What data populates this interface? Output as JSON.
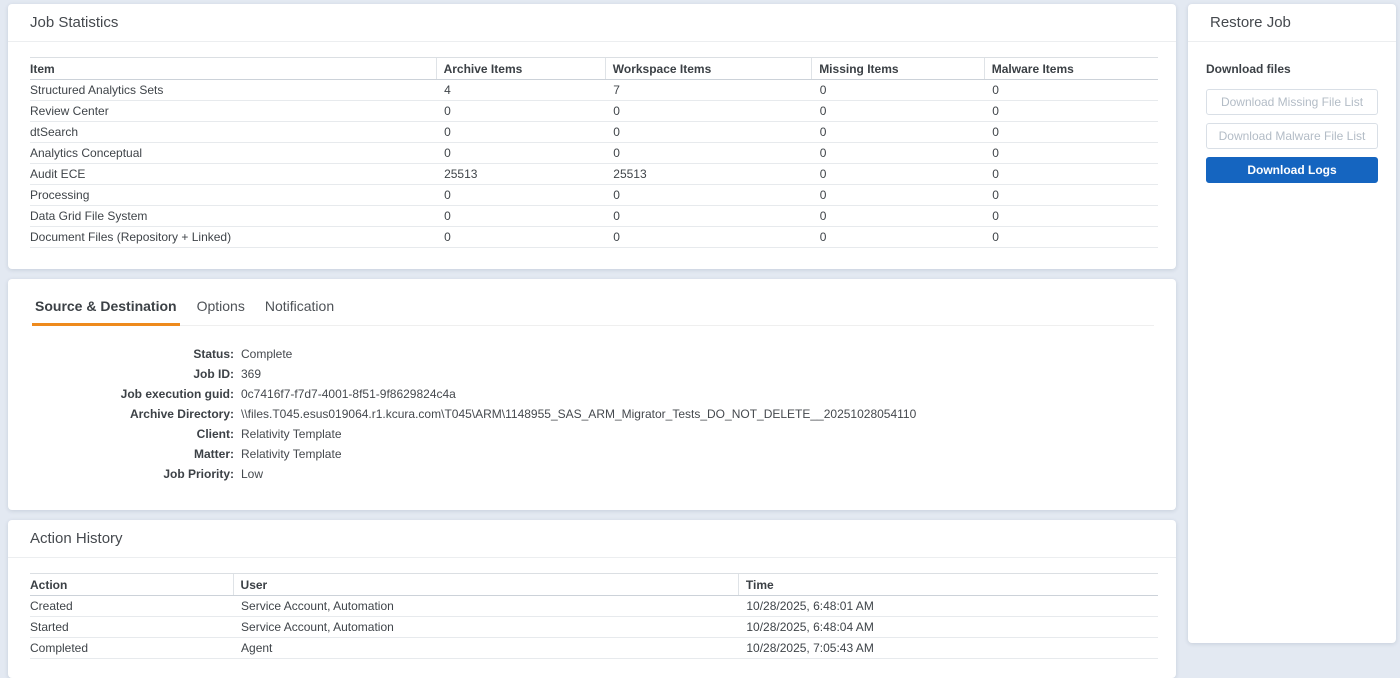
{
  "colors": {
    "page_bg": "#e3e9f2",
    "accent_orange": "#ee8a1d",
    "primary_blue": "#1565c0"
  },
  "job_statistics": {
    "title": "Job Statistics",
    "columns": [
      "Item",
      "Archive Items",
      "Workspace Items",
      "Missing Items",
      "Malware Items"
    ],
    "rows": [
      [
        "Structured Analytics Sets",
        "4",
        "7",
        "0",
        "0"
      ],
      [
        "Review Center",
        "0",
        "0",
        "0",
        "0"
      ],
      [
        "dtSearch",
        "0",
        "0",
        "0",
        "0"
      ],
      [
        "Analytics Conceptual",
        "0",
        "0",
        "0",
        "0"
      ],
      [
        "Audit ECE",
        "25513",
        "25513",
        "0",
        "0"
      ],
      [
        "Processing",
        "0",
        "0",
        "0",
        "0"
      ],
      [
        "Data Grid File System",
        "0",
        "0",
        "0",
        "0"
      ],
      [
        "Document Files (Repository + Linked)",
        "0",
        "0",
        "0",
        "0"
      ]
    ]
  },
  "details": {
    "tabs": [
      {
        "label": "Source & Destination",
        "active": true
      },
      {
        "label": "Options",
        "active": false
      },
      {
        "label": "Notification",
        "active": false
      }
    ],
    "fields": [
      {
        "label": "Status:",
        "value": "Complete"
      },
      {
        "label": "Job ID:",
        "value": "369"
      },
      {
        "label": "Job execution guid:",
        "value": "0c7416f7-f7d7-4001-8f51-9f8629824c4a"
      },
      {
        "label": "Archive Directory:",
        "value": "\\\\files.T045.esus019064.r1.kcura.com\\T045\\ARM\\1148955_SAS_ARM_Migrator_Tests_DO_NOT_DELETE__20251028054110"
      },
      {
        "label": "Client:",
        "value": "Relativity Template"
      },
      {
        "label": "Matter:",
        "value": "Relativity Template"
      },
      {
        "label": "Job Priority:",
        "value": "Low"
      }
    ]
  },
  "action_history": {
    "title": "Action History",
    "columns": [
      "Action",
      "User",
      "Time"
    ],
    "rows": [
      [
        "Created",
        "Service Account, Automation",
        "10/28/2025, 6:48:01 AM"
      ],
      [
        "Started",
        "Service Account, Automation",
        "10/28/2025, 6:48:04 AM"
      ],
      [
        "Completed",
        "Agent",
        "10/28/2025, 7:05:43 AM"
      ]
    ]
  },
  "restore_job": {
    "title": "Restore Job",
    "download_files_heading": "Download files",
    "buttons": [
      {
        "label": "Download Missing File List",
        "state": "disabled"
      },
      {
        "label": "Download Malware File List",
        "state": "disabled"
      },
      {
        "label": "Download Logs",
        "state": "primary"
      }
    ]
  }
}
